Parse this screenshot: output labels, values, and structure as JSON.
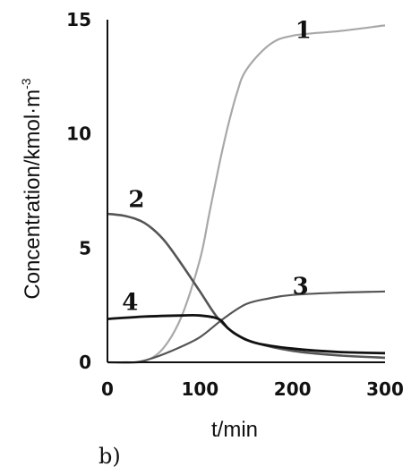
{
  "chart_data": {
    "type": "line",
    "panel_label": "b)",
    "xlabel": "t/min",
    "ylabel": "Concentration/kmol·m",
    "ylabel_exponent": "-3",
    "xlim": [
      0,
      300
    ],
    "ylim": [
      0,
      15
    ],
    "x_ticks": [
      "0",
      "100",
      "200",
      "300"
    ],
    "y_ticks": [
      "0",
      "5",
      "10",
      "15"
    ],
    "grid": false,
    "series": [
      {
        "name": "1",
        "color": "#a8a8a8",
        "points": [
          [
            0,
            0
          ],
          [
            20,
            0
          ],
          [
            40,
            0.05
          ],
          [
            60,
            0.6
          ],
          [
            80,
            2
          ],
          [
            100,
            4.5
          ],
          [
            110,
            6.5
          ],
          [
            120,
            8.5
          ],
          [
            130,
            10.3
          ],
          [
            140,
            11.8
          ],
          [
            150,
            12.8
          ],
          [
            175,
            13.9
          ],
          [
            200,
            14.3
          ],
          [
            250,
            14.5
          ],
          [
            300,
            14.75
          ]
        ]
      },
      {
        "name": "2",
        "color": "#555555",
        "points": [
          [
            0,
            6.5
          ],
          [
            20,
            6.4
          ],
          [
            40,
            6.1
          ],
          [
            60,
            5.4
          ],
          [
            80,
            4.3
          ],
          [
            100,
            3.1
          ],
          [
            120,
            1.9
          ],
          [
            140,
            1.2
          ],
          [
            160,
            0.85
          ],
          [
            200,
            0.5
          ],
          [
            250,
            0.3
          ],
          [
            300,
            0.2
          ]
        ]
      },
      {
        "name": "3",
        "color": "#555555",
        "points": [
          [
            0,
            0
          ],
          [
            30,
            0
          ],
          [
            50,
            0.2
          ],
          [
            75,
            0.6
          ],
          [
            100,
            1.1
          ],
          [
            125,
            1.9
          ],
          [
            150,
            2.55
          ],
          [
            175,
            2.8
          ],
          [
            200,
            2.95
          ],
          [
            250,
            3.05
          ],
          [
            300,
            3.1
          ]
        ]
      },
      {
        "name": "4",
        "color": "#111111",
        "points": [
          [
            0,
            1.9
          ],
          [
            40,
            2.0
          ],
          [
            80,
            2.05
          ],
          [
            100,
            2.05
          ],
          [
            120,
            1.9
          ],
          [
            130,
            1.5
          ],
          [
            140,
            1.2
          ],
          [
            160,
            0.85
          ],
          [
            200,
            0.6
          ],
          [
            250,
            0.45
          ],
          [
            300,
            0.4
          ]
        ]
      }
    ]
  }
}
